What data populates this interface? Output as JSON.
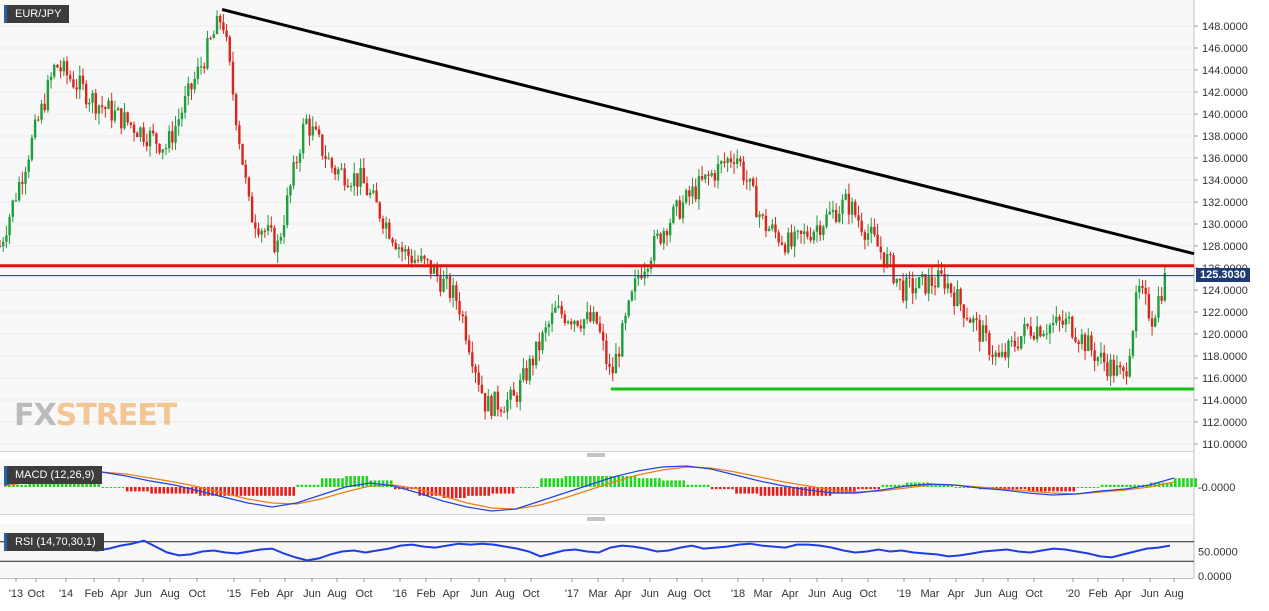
{
  "instrument": "EUR/JPY",
  "watermark": {
    "fx": "FX",
    "street": "STREET"
  },
  "last_price_label": "125.3030",
  "colors": {
    "bull": "#1e9d3a",
    "bear": "#d9261c",
    "trendline": "#000000",
    "resistance": "#e8100e",
    "support": "#17c30f",
    "macd_line": "#2244dd",
    "signal_line": "#f07d19",
    "rsi_line": "#1e3ee0",
    "price_line": "#1f3b73"
  },
  "chart_data": [
    {
      "type": "candlestick",
      "title": "EUR/JPY",
      "timeframe": "weekly",
      "ylim": [
        109,
        150
      ],
      "y_ticks": [
        "148.0000",
        "146.0000",
        "144.0000",
        "142.0000",
        "140.0000",
        "138.0000",
        "136.0000",
        "134.0000",
        "132.0000",
        "130.0000",
        "128.0000",
        "126.0000",
        "124.0000",
        "122.0000",
        "120.0000",
        "118.0000",
        "116.0000",
        "114.0000",
        "112.0000",
        "110.0000"
      ],
      "x_ticks": [
        "'13",
        "Oct",
        "'14",
        "Feb",
        "Apr",
        "Jun",
        "Aug",
        "Oct",
        "'15",
        "Feb",
        "Apr",
        "Jun",
        "Aug",
        "Oct",
        "'16",
        "Feb",
        "Apr",
        "Jun",
        "Aug",
        "Oct",
        "'17",
        "Mar",
        "Apr",
        "Jun",
        "Aug",
        "Oct",
        "'18",
        "Mar",
        "Apr",
        "Jun",
        "Aug",
        "Oct",
        "'19",
        "Mar",
        "Apr",
        "Jun",
        "Aug",
        "Oct",
        "'20",
        "Feb",
        "Apr",
        "Jun",
        "Aug"
      ],
      "anchors": [
        {
          "date": "2013-08",
          "close": 128.0
        },
        {
          "date": "2013-12",
          "close": 144.5
        },
        {
          "date": "2014-03",
          "close": 141.0
        },
        {
          "date": "2014-08",
          "close": 137.0
        },
        {
          "date": "2014-12",
          "close": 149.0
        },
        {
          "date": "2015-02",
          "close": 131.0
        },
        {
          "date": "2015-04",
          "close": 128.0
        },
        {
          "date": "2015-06",
          "close": 139.5
        },
        {
          "date": "2015-08",
          "close": 135.0
        },
        {
          "date": "2015-10",
          "close": 134.0
        },
        {
          "date": "2016-01",
          "close": 127.5
        },
        {
          "date": "2016-03",
          "close": 126.0
        },
        {
          "date": "2016-05",
          "close": 123.0
        },
        {
          "date": "2016-07",
          "close": 113.5
        },
        {
          "date": "2016-09",
          "close": 114.0
        },
        {
          "date": "2016-12",
          "close": 122.0
        },
        {
          "date": "2017-03",
          "close": 121.0
        },
        {
          "date": "2017-04",
          "close": 116.0
        },
        {
          "date": "2017-06",
          "close": 125.5
        },
        {
          "date": "2017-08",
          "close": 130.0
        },
        {
          "date": "2017-10",
          "close": 133.0
        },
        {
          "date": "2018-01",
          "close": 136.5
        },
        {
          "date": "2018-03",
          "close": 130.0
        },
        {
          "date": "2018-05",
          "close": 128.0
        },
        {
          "date": "2018-09",
          "close": 132.0
        },
        {
          "date": "2018-12",
          "close": 126.5
        },
        {
          "date": "2019-01",
          "close": 124.0
        },
        {
          "date": "2019-04",
          "close": 125.0
        },
        {
          "date": "2019-08",
          "close": 117.5
        },
        {
          "date": "2019-10",
          "close": 120.5
        },
        {
          "date": "2020-01",
          "close": 121.0
        },
        {
          "date": "2020-03",
          "close": 118.0
        },
        {
          "date": "2020-05",
          "close": 116.0
        },
        {
          "date": "2020-06",
          "close": 124.0
        },
        {
          "date": "2020-07",
          "close": 121.5
        },
        {
          "date": "2020-08",
          "close": 125.3
        }
      ],
      "annotations": [
        {
          "type": "trendline",
          "from": {
            "date": "2014-12",
            "price": 149.5
          },
          "to": {
            "date": "2020-09",
            "price": 127.3
          },
          "color": "#000000"
        },
        {
          "type": "horizontal",
          "price": 126.2,
          "color": "#e8100e"
        },
        {
          "type": "horizontal",
          "price": 115.0,
          "from_date": "2017-04",
          "color": "#17c30f"
        },
        {
          "type": "price_line",
          "price": 125.303,
          "color": "#1f3b73"
        }
      ]
    },
    {
      "type": "macd",
      "label": "MACD (12,26,9)",
      "y_ticks": [
        "-0.0000"
      ],
      "macd": [
        0.2,
        0.8,
        1.4,
        1.8,
        1.5,
        1.1,
        0.6,
        0.2,
        -0.4,
        -1.0,
        -1.6,
        -2.0,
        -1.6,
        -0.8,
        0.0,
        0.4,
        0.1,
        -0.6,
        -1.4,
        -2.0,
        -2.4,
        -2.2,
        -1.4,
        -0.6,
        0.2,
        1.0,
        1.6,
        2.0,
        2.1,
        1.8,
        1.2,
        0.6,
        0.1,
        -0.3,
        -0.6,
        -0.6,
        -0.3,
        0.1,
        0.3,
        0.2,
        -0.1,
        -0.3,
        -0.6,
        -0.8,
        -0.7,
        -0.4,
        -0.2,
        0.2,
        0.9
      ],
      "signal": [
        0.1,
        0.5,
        1.0,
        1.4,
        1.5,
        1.3,
        0.9,
        0.5,
        0.0,
        -0.6,
        -1.2,
        -1.6,
        -1.7,
        -1.2,
        -0.5,
        0.1,
        0.2,
        -0.2,
        -0.9,
        -1.6,
        -2.1,
        -2.2,
        -1.8,
        -1.1,
        -0.3,
        0.5,
        1.2,
        1.7,
        2.0,
        1.9,
        1.5,
        1.0,
        0.5,
        0.1,
        -0.3,
        -0.5,
        -0.4,
        -0.1,
        0.2,
        0.2,
        0.0,
        -0.2,
        -0.4,
        -0.6,
        -0.7,
        -0.5,
        -0.3,
        0.0,
        0.5
      ]
    },
    {
      "type": "rsi",
      "label": "RSI (14,70,30,1)",
      "y_ticks": [
        "50.0000",
        "0.0000"
      ],
      "levels": [
        70,
        30
      ],
      "values": [
        58,
        62,
        64,
        60,
        56,
        58,
        60,
        54,
        52,
        56,
        62,
        66,
        72,
        60,
        48,
        42,
        44,
        50,
        52,
        48,
        46,
        50,
        54,
        56,
        46,
        38,
        32,
        36,
        44,
        50,
        52,
        48,
        52,
        56,
        62,
        64,
        60,
        58,
        62,
        66,
        64,
        66,
        64,
        60,
        56,
        50,
        40,
        46,
        52,
        54,
        50,
        48,
        58,
        62,
        60,
        56,
        50,
        52,
        58,
        62,
        56,
        58,
        60,
        64,
        66,
        62,
        60,
        58,
        64,
        64,
        62,
        58,
        52,
        48,
        50,
        54,
        50,
        52,
        48,
        46,
        44,
        40,
        42,
        46,
        50,
        52,
        54,
        50,
        48,
        52,
        56,
        54,
        50,
        46,
        40,
        38,
        44,
        50,
        56,
        58,
        62
      ]
    }
  ]
}
